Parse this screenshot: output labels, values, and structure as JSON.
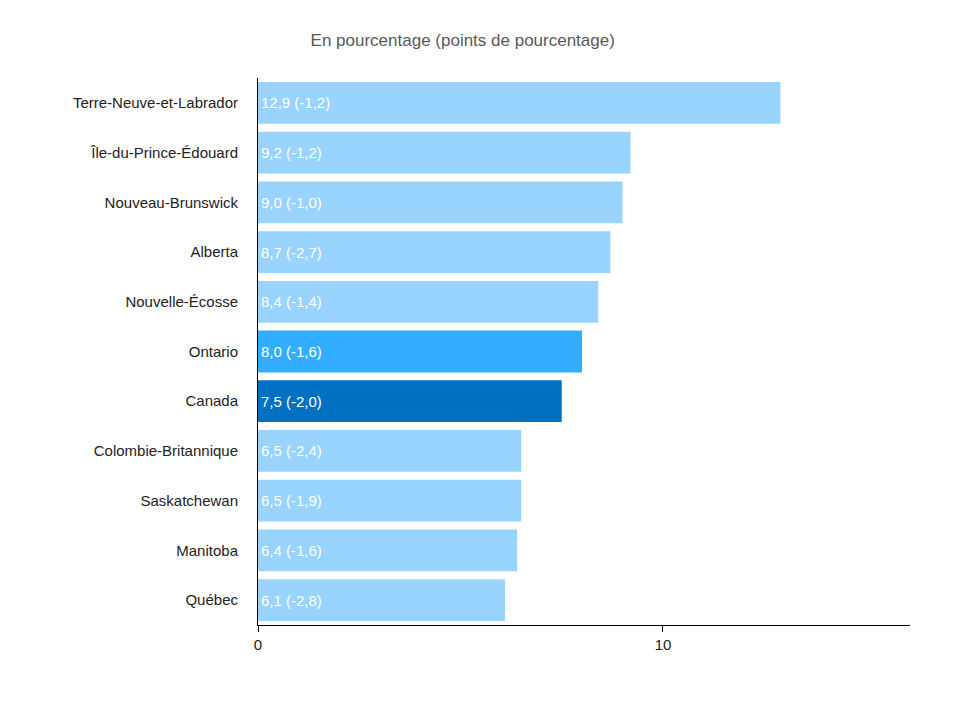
{
  "chart_data": {
    "type": "bar",
    "orientation": "horizontal",
    "title": "En pourcentage (points de pourcentage)",
    "categories": [
      "Terre-Neuve-et-Labrador",
      "Île-du-Prince-Édouard",
      "Nouveau-Brunswick",
      "Alberta",
      "Nouvelle-Écosse",
      "Ontario",
      "Canada",
      "Colombie-Britannique",
      "Saskatchewan",
      "Manitoba",
      "Québec"
    ],
    "values": [
      12.9,
      9.2,
      9.0,
      8.7,
      8.4,
      8.0,
      7.5,
      6.5,
      6.5,
      6.4,
      6.1
    ],
    "value_labels": [
      "12,9 (-1,2)",
      "9,2 (-1,2)",
      "9,0 (-1,0)",
      "8,7 (-2,7)",
      "8,4 (-1,4)",
      "8,0 (-1,6)",
      "7,5 (-2,0)",
      "6,5 (-2,4)",
      "6,5 (-1,9)",
      "6,4 (-1,6)",
      "6,1 (-2,8)"
    ],
    "colors": [
      "#99d3ff",
      "#99d3ff",
      "#99d3ff",
      "#99d3ff",
      "#99d3ff",
      "#33adff",
      "#0070c0",
      "#99d3ff",
      "#99d3ff",
      "#99d3ff",
      "#99d3ff"
    ],
    "data_labels": true,
    "xlim": [
      0,
      16.1
    ],
    "xticks": [
      0,
      10
    ],
    "grid": false
  }
}
